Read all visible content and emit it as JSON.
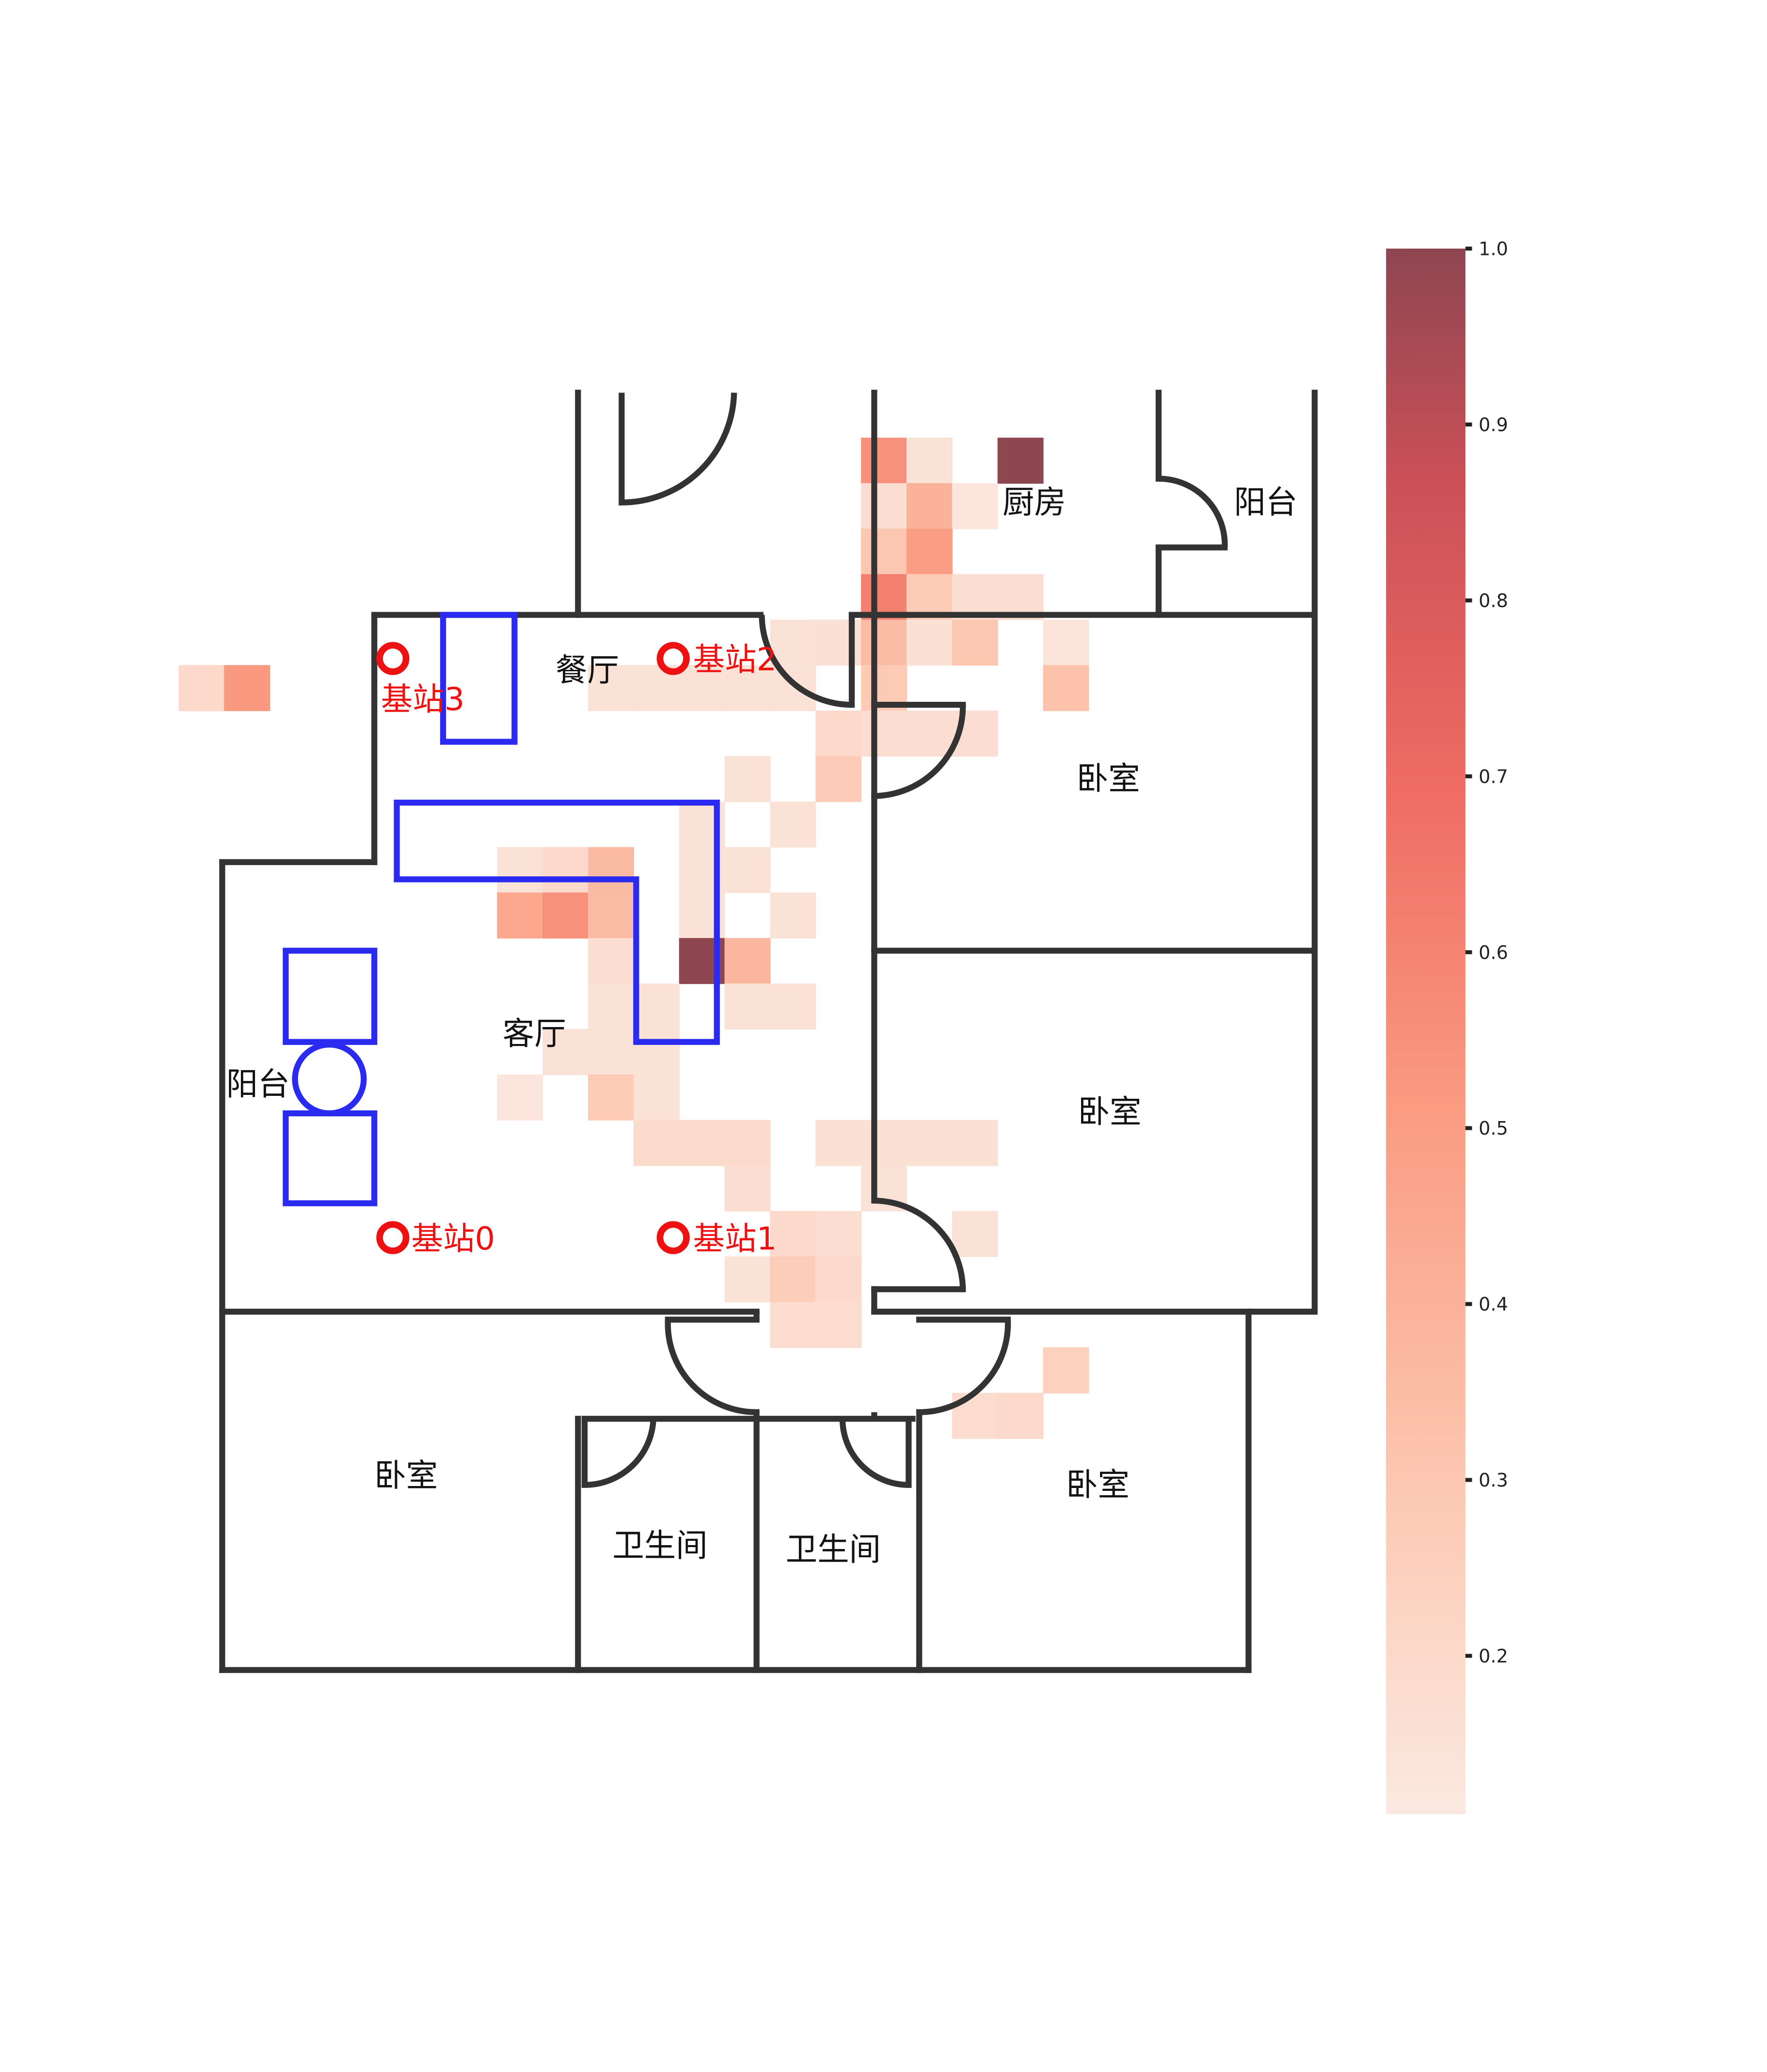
{
  "map": {
    "rooms": [
      {
        "id": "kitchen",
        "label": "厨房"
      },
      {
        "id": "balcony-top",
        "label": "阳台"
      },
      {
        "id": "dining",
        "label": "餐厅"
      },
      {
        "id": "bedroom-1",
        "label": "卧室"
      },
      {
        "id": "bedroom-2",
        "label": "卧室"
      },
      {
        "id": "living",
        "label": "客厅"
      },
      {
        "id": "balcony-left",
        "label": "阳台"
      },
      {
        "id": "bedroom-3",
        "label": "卧室"
      },
      {
        "id": "bath-1",
        "label": "卫生间"
      },
      {
        "id": "bath-2",
        "label": "卫生间"
      },
      {
        "id": "bedroom-4",
        "label": "卧室"
      }
    ],
    "stations": [
      {
        "id": "s0",
        "label": "基站0"
      },
      {
        "id": "s1",
        "label": "基站1"
      },
      {
        "id": "s2",
        "label": "基站2"
      },
      {
        "id": "s3",
        "label": "基站3"
      }
    ],
    "heatmap": {
      "color_low": "#fbe9e1",
      "color_high": "#8e4651",
      "value_range": [
        0.11,
        1.0
      ],
      "note_units": "grid cell column, row, normalized intensity"
    },
    "colorbar": {
      "ticks": [
        "0.2",
        "0.3",
        "0.4",
        "0.5",
        "0.6",
        "0.7",
        "0.8",
        "0.9",
        "1.0"
      ]
    },
    "colors": {
      "walls": "#333333",
      "furniture": "#2a2af0",
      "stations": "#ee1111"
    }
  },
  "chart_data": {
    "type": "heatmap",
    "cells": [
      [
        0,
        0,
        0.55
      ],
      [
        1,
        0,
        0.15
      ],
      [
        3,
        0,
        1.0
      ],
      [
        0,
        1,
        0.17
      ],
      [
        1,
        1,
        0.4
      ],
      [
        2,
        1,
        0.13
      ],
      [
        0,
        2,
        0.3
      ],
      [
        1,
        2,
        0.5
      ],
      [
        0,
        3,
        0.62
      ],
      [
        1,
        3,
        0.28
      ],
      [
        2,
        3,
        0.17
      ],
      [
        3,
        3,
        0.17
      ],
      [
        -2,
        4,
        0.15
      ],
      [
        -1,
        4,
        0.16
      ],
      [
        0,
        4,
        0.35
      ],
      [
        1,
        4,
        0.16
      ],
      [
        2,
        4,
        0.3
      ],
      [
        4,
        4,
        0.14
      ],
      [
        -15,
        5,
        0.2
      ],
      [
        -14,
        5,
        0.52
      ],
      [
        -6,
        5,
        0.15
      ],
      [
        -5,
        5,
        0.15
      ],
      [
        -4,
        5,
        0.15
      ],
      [
        -3,
        5,
        0.15
      ],
      [
        -2,
        5,
        0.15
      ],
      [
        0,
        5,
        0.28
      ],
      [
        4,
        5,
        0.32
      ],
      [
        -1,
        6,
        0.2
      ],
      [
        0,
        6,
        0.17
      ],
      [
        1,
        6,
        0.17
      ],
      [
        2,
        6,
        0.17
      ],
      [
        -3,
        7,
        0.15
      ],
      [
        -1,
        7,
        0.27
      ],
      [
        -4,
        8,
        0.15
      ],
      [
        -2,
        8,
        0.15
      ],
      [
        -8,
        9,
        0.15
      ],
      [
        -7,
        9,
        0.2
      ],
      [
        -6,
        9,
        0.36
      ],
      [
        -4,
        9,
        0.15
      ],
      [
        -3,
        9,
        0.15
      ],
      [
        -8,
        10,
        0.45
      ],
      [
        -7,
        10,
        0.55
      ],
      [
        -6,
        10,
        0.35
      ],
      [
        -4,
        10,
        0.15
      ],
      [
        -2,
        10,
        0.15
      ],
      [
        -6,
        11,
        0.17
      ],
      [
        -4,
        11,
        1.0
      ],
      [
        -3,
        11,
        0.38
      ],
      [
        -6,
        12,
        0.15
      ],
      [
        -5,
        12,
        0.15
      ],
      [
        -3,
        12,
        0.15
      ],
      [
        -2,
        12,
        0.15
      ],
      [
        -7,
        13,
        0.15
      ],
      [
        -6,
        13,
        0.15
      ],
      [
        -5,
        13,
        0.15
      ],
      [
        -8,
        14,
        0.13
      ],
      [
        -6,
        14,
        0.28
      ],
      [
        -5,
        14,
        0.15
      ],
      [
        -5,
        15,
        0.19
      ],
      [
        -4,
        15,
        0.19
      ],
      [
        -3,
        15,
        0.19
      ],
      [
        -1,
        15,
        0.16
      ],
      [
        0,
        15,
        0.16
      ],
      [
        1,
        15,
        0.16
      ],
      [
        2,
        15,
        0.16
      ],
      [
        -3,
        16,
        0.17
      ],
      [
        0,
        16,
        0.15
      ],
      [
        -2,
        17,
        0.2
      ],
      [
        -1,
        17,
        0.17
      ],
      [
        2,
        17,
        0.15
      ],
      [
        -3,
        18,
        0.15
      ],
      [
        -2,
        18,
        0.26
      ],
      [
        -1,
        18,
        0.2
      ],
      [
        -2,
        19,
        0.18
      ],
      [
        -1,
        19,
        0.18
      ],
      [
        4,
        20,
        0.24
      ],
      [
        2,
        21,
        0.18
      ],
      [
        3,
        21,
        0.2
      ]
    ],
    "value_range": [
      0.11,
      1.0
    ],
    "colorbar_ticks": [
      0.2,
      0.3,
      0.4,
      0.5,
      0.6,
      0.7,
      0.8,
      0.9,
      1.0
    ]
  }
}
